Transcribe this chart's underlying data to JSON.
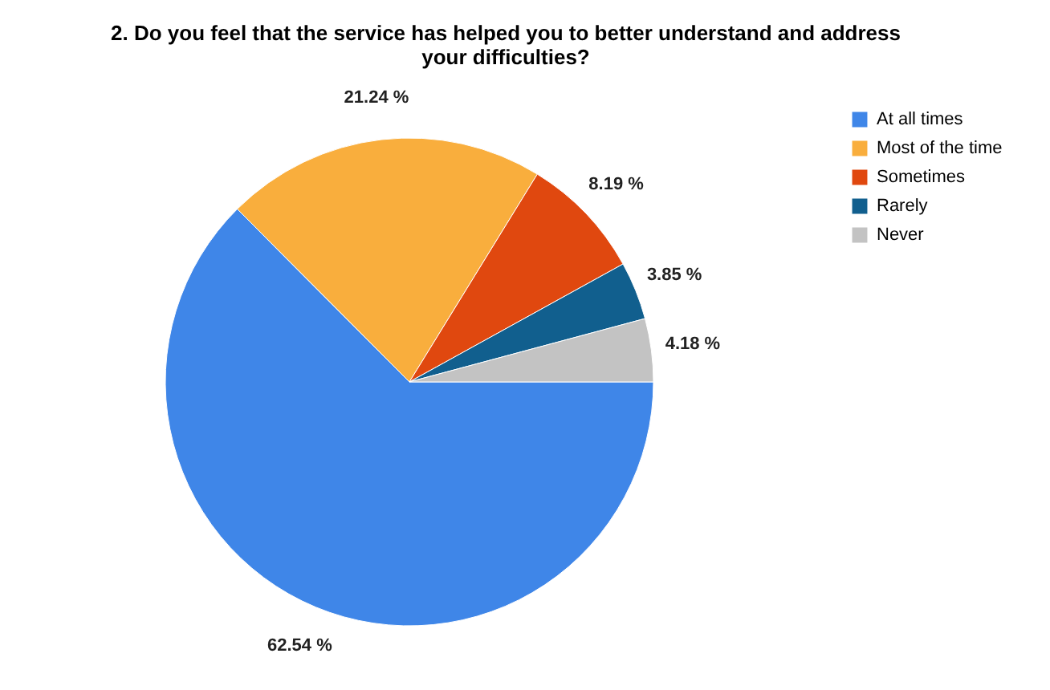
{
  "chart_data": {
    "type": "pie",
    "title": [
      "2. Do you feel that the service has helped you to better understand and address",
      "your difficulties?"
    ],
    "categories": [
      "At all times",
      "Most of the time",
      "Sometimes",
      "Rarely",
      "Never"
    ],
    "values": [
      62.54,
      21.24,
      8.19,
      3.85,
      4.18
    ],
    "colors": [
      "#3f86e8",
      "#f9ae3d",
      "#e0480f",
      "#115f8e",
      "#c3c3c3"
    ],
    "value_labels": [
      "62.54 %",
      "21.24 %",
      "8.19 %",
      "3.85 %",
      "4.18 %"
    ],
    "legend": "top right"
  }
}
